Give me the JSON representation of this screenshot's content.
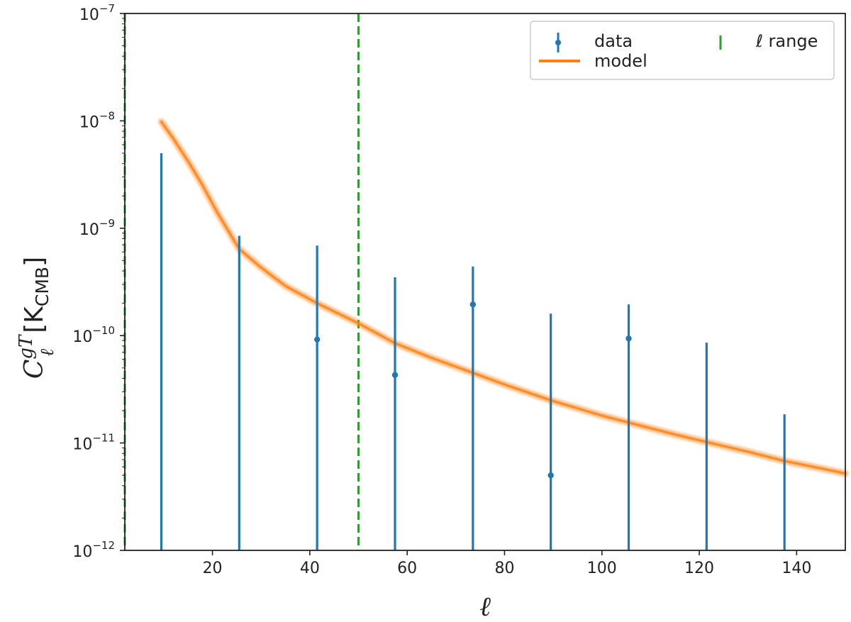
{
  "chart_data": {
    "type": "scatter",
    "title": "",
    "xlabel": "ℓ",
    "ylabel": {
      "base": "C",
      "sub": "ℓ",
      "sup": "gT",
      "unit": "[K",
      "unit_sub": "CMB",
      "unit_close": "]"
    },
    "xlim": [
      2,
      150
    ],
    "ylim": [
      1e-12,
      1e-07
    ],
    "yscale": "log",
    "grid": false,
    "legend_position": "top-right",
    "x_ticks": [
      {
        "value": 20,
        "label": "20"
      },
      {
        "value": 40,
        "label": "40"
      },
      {
        "value": 60,
        "label": "60"
      },
      {
        "value": 80,
        "label": "80"
      },
      {
        "value": 100,
        "label": "100"
      },
      {
        "value": 120,
        "label": "120"
      },
      {
        "value": 140,
        "label": "140"
      }
    ],
    "y_ticks": [
      {
        "value": 1e-12,
        "mant": "10",
        "exp": "−12"
      },
      {
        "value": 1e-11,
        "mant": "10",
        "exp": "−11"
      },
      {
        "value": 1e-10,
        "mant": "10",
        "exp": "−10"
      },
      {
        "value": 1e-09,
        "mant": "10",
        "exp": "−9"
      },
      {
        "value": 1e-08,
        "mant": "10",
        "exp": "−8"
      },
      {
        "value": 1e-07,
        "mant": "10",
        "exp": "−7"
      }
    ],
    "data": {
      "name": "data",
      "color": "#1f77b4",
      "points": [
        {
          "x": 9.5,
          "y": null,
          "err_low": 1e-12,
          "err_high": 5e-09
        },
        {
          "x": 25.5,
          "y": null,
          "err_low": 1e-12,
          "err_high": 8.5e-10
        },
        {
          "x": 41.5,
          "y": 9.2e-11,
          "err_low": 1e-12,
          "err_high": 6.9e-10
        },
        {
          "x": 57.5,
          "y": 4.3e-11,
          "err_low": 1e-12,
          "err_high": 3.5e-10
        },
        {
          "x": 73.5,
          "y": 1.95e-10,
          "err_low": 1e-12,
          "err_high": 4.4e-10
        },
        {
          "x": 89.5,
          "y": 5e-12,
          "err_low": 1e-12,
          "err_high": 1.6e-10
        },
        {
          "x": 105.5,
          "y": 9.4e-11,
          "err_low": 1e-12,
          "err_high": 1.95e-10
        },
        {
          "x": 121.5,
          "y": null,
          "err_low": 1e-12,
          "err_high": 8.6e-11
        },
        {
          "x": 137.5,
          "y": null,
          "err_low": 1e-12,
          "err_high": 1.85e-11
        }
      ]
    },
    "model": {
      "name": "model",
      "color": "#ff7f0e",
      "x": [
        9.5,
        12,
        15,
        18,
        21,
        25.5,
        30,
        35,
        41.5,
        50,
        57.5,
        65,
        73.5,
        80,
        89.5,
        100,
        105.5,
        115,
        121.5,
        130,
        137.5,
        145,
        150
      ],
      "y": [
        9.8e-09,
        6.8e-09,
        4.2e-09,
        2.5e-09,
        1.4e-09,
        6.4e-10,
        4.3e-10,
        2.9e-10,
        2e-10,
        1.3e-10,
        8.5e-11,
        6.2e-11,
        4.5e-11,
        3.5e-11,
        2.5e-11,
        1.8e-11,
        1.55e-11,
        1.2e-11,
        1.02e-11,
        8.3e-12,
        6.8e-12,
        5.8e-12,
        5.2e-12
      ]
    },
    "range": {
      "name": "ℓ range",
      "color": "#2ca02c",
      "lines": [
        2,
        50
      ]
    }
  }
}
